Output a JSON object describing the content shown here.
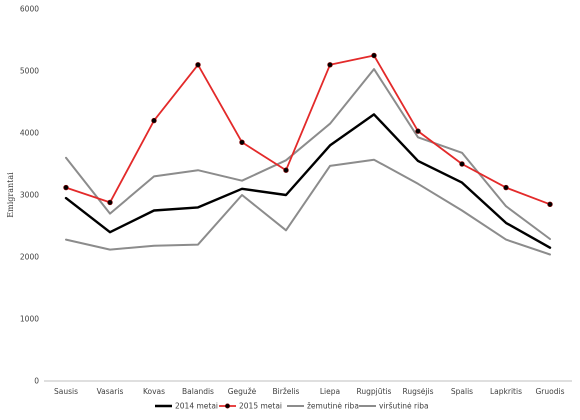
{
  "chart_data": {
    "type": "line",
    "title": "",
    "xlabel": "",
    "ylabel": "Emigrantai",
    "ylim": [
      0,
      6000
    ],
    "yticks": [
      0,
      1000,
      2000,
      3000,
      4000,
      5000,
      6000
    ],
    "grid": false,
    "legend_position": "bottom",
    "categories": [
      "Sausis",
      "Vasaris",
      "Kovas",
      "Balandis",
      "Gegužė",
      "Birželis",
      "Liepa",
      "Rugpjūtis",
      "Rugsėjis",
      "Spalis",
      "Lapkritis",
      "Gruodis"
    ],
    "series": [
      {
        "name": "2014 metai",
        "color": "#000000",
        "marker": "none",
        "values": [
          2950,
          2400,
          2750,
          2800,
          3100,
          3000,
          3800,
          4300,
          3550,
          3200,
          2550,
          2150
        ]
      },
      {
        "name": "2015 metai",
        "color": "#e32a2a",
        "marker": "circle",
        "values": [
          3120,
          2880,
          4200,
          5100,
          3850,
          3400,
          5100,
          5250,
          4030,
          3500,
          3120,
          2850
        ]
      },
      {
        "name": "žemutinė riba",
        "color": "#8c8c8c",
        "marker": "none",
        "values": [
          2280,
          2120,
          2180,
          2200,
          3000,
          2430,
          3470,
          3570,
          3180,
          2750,
          2280,
          2040
        ]
      },
      {
        "name": "viršutinė riba",
        "color": "#8c8c8c",
        "marker": "none",
        "values": [
          3600,
          2700,
          3300,
          3400,
          3230,
          3560,
          4150,
          5030,
          3930,
          3680,
          2820,
          2290
        ]
      }
    ]
  }
}
